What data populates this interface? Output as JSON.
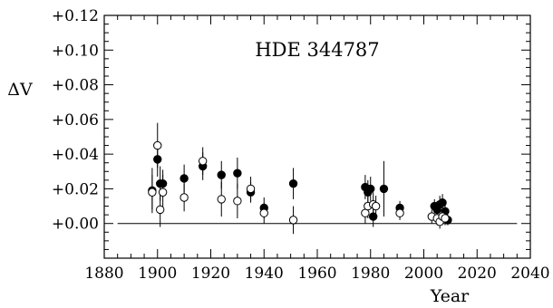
{
  "chart_data": {
    "type": "scatter",
    "title": "HDE 344787",
    "xlabel": "Year",
    "ylabel": "ΔV",
    "xlim": [
      1880,
      2040
    ],
    "ylim": [
      -0.02,
      0.12
    ],
    "x_ticks": [
      1880,
      1900,
      1920,
      1940,
      1960,
      1980,
      2000,
      2020,
      2040
    ],
    "x_tick_labels": [
      "1880",
      "1900",
      "1920",
      "1940",
      "1960",
      "1980",
      "2000",
      "2020",
      "2040"
    ],
    "y_ticks": [
      0.0,
      0.02,
      0.04,
      0.06,
      0.08,
      0.1,
      0.12
    ],
    "y_tick_labels": [
      "+0.00",
      "+0.02",
      "+0.04",
      "+0.06",
      "+0.08",
      "+0.10",
      "+0.12"
    ],
    "reference_line_y": 0.0,
    "series": [
      {
        "marker": "filled-circle",
        "points": [
          {
            "x": 1898,
            "y": 0.019,
            "err": 0.013
          },
          {
            "x": 1900,
            "y": 0.037,
            "err": 0.01
          },
          {
            "x": 1901,
            "y": 0.023,
            "err": 0.01
          },
          {
            "x": 1902,
            "y": 0.023,
            "err": 0.008
          },
          {
            "x": 1910,
            "y": 0.026,
            "err": 0.008
          },
          {
            "x": 1917,
            "y": 0.033,
            "err": 0.008
          },
          {
            "x": 1924,
            "y": 0.028,
            "err": 0.008
          },
          {
            "x": 1930,
            "y": 0.029,
            "err": 0.009
          },
          {
            "x": 1935,
            "y": 0.018,
            "err": 0.006
          },
          {
            "x": 1940,
            "y": 0.009,
            "err": 0.006
          },
          {
            "x": 1951,
            "y": 0.023,
            "err": 0.009
          },
          {
            "x": 1978,
            "y": 0.021,
            "err": 0.007
          },
          {
            "x": 1979,
            "y": 0.018,
            "err": 0.007
          },
          {
            "x": 1980,
            "y": 0.02,
            "err": 0.007
          },
          {
            "x": 1981,
            "y": 0.004,
            "err": 0.006
          },
          {
            "x": 1985,
            "y": 0.02,
            "err": 0.016
          },
          {
            "x": 1991,
            "y": 0.009,
            "err": 0.004
          },
          {
            "x": 2004,
            "y": 0.01,
            "err": 0.004
          },
          {
            "x": 2005,
            "y": 0.008,
            "err": 0.004
          },
          {
            "x": 2006,
            "y": 0.011,
            "err": 0.005
          },
          {
            "x": 2007,
            "y": 0.012,
            "err": 0.005
          },
          {
            "x": 2008,
            "y": 0.007,
            "err": 0.004
          },
          {
            "x": 2009,
            "y": 0.002,
            "err": 0.003
          }
        ]
      },
      {
        "marker": "open-circle",
        "points": [
          {
            "x": 1898,
            "y": 0.018,
            "err": 0.01
          },
          {
            "x": 1900,
            "y": 0.045,
            "err": 0.013
          },
          {
            "x": 1901,
            "y": 0.008,
            "err": 0.01
          },
          {
            "x": 1902,
            "y": 0.018,
            "err": 0.01
          },
          {
            "x": 1910,
            "y": 0.015,
            "err": 0.008
          },
          {
            "x": 1917,
            "y": 0.036,
            "err": 0.008
          },
          {
            "x": 1924,
            "y": 0.014,
            "err": 0.01
          },
          {
            "x": 1930,
            "y": 0.013,
            "err": 0.01
          },
          {
            "x": 1935,
            "y": 0.02,
            "err": 0.007
          },
          {
            "x": 1940,
            "y": 0.006,
            "err": 0.006
          },
          {
            "x": 1951,
            "y": 0.002,
            "err": 0.008
          },
          {
            "x": 1978,
            "y": 0.006,
            "err": 0.006
          },
          {
            "x": 1979,
            "y": 0.01,
            "err": 0.007
          },
          {
            "x": 1981,
            "y": 0.011,
            "err": 0.007
          },
          {
            "x": 1982,
            "y": 0.01,
            "err": 0.006
          },
          {
            "x": 1991,
            "y": 0.006,
            "err": 0.004
          },
          {
            "x": 2003,
            "y": 0.004,
            "err": 0.004
          },
          {
            "x": 2005,
            "y": 0.003,
            "err": 0.004
          },
          {
            "x": 2006,
            "y": 0.001,
            "err": 0.004
          },
          {
            "x": 2007,
            "y": 0.004,
            "err": 0.004
          },
          {
            "x": 2008,
            "y": 0.003,
            "err": 0.004
          }
        ]
      }
    ]
  }
}
